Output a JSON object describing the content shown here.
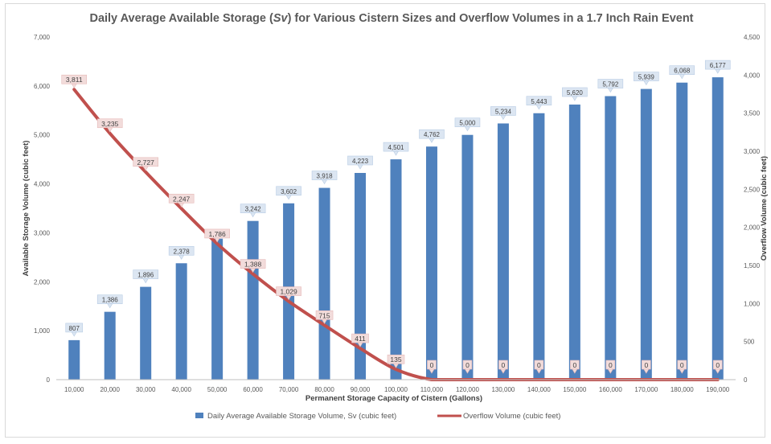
{
  "chart_data": {
    "type": "bar",
    "title_parts": [
      "Daily Average Available Storage (",
      "Sv",
      ") for Various Cistern Sizes and Overflow Volumes in a 1.7 Inch Rain Event"
    ],
    "xlabel": "Permanent Storage Capacity of Cistern (Gallons)",
    "ylabel": "Available Storage Volume (cubic feet)",
    "y2label": "Overflow Volume (cubic feet)",
    "categories": [
      "10,000",
      "20,000",
      "30,000",
      "40,000",
      "50,000",
      "60,000",
      "70,000",
      "80,000",
      "90,000",
      "100,000",
      "110,000",
      "120,000",
      "130,000",
      "140,000",
      "150,000",
      "160,000",
      "170,000",
      "180,000",
      "190,000"
    ],
    "ylim": [
      0,
      7000
    ],
    "y2lim": [
      0,
      4500
    ],
    "y_ticks": [
      "0",
      "1,000",
      "2,000",
      "3,000",
      "4,000",
      "5,000",
      "6,000",
      "7,000"
    ],
    "y2_ticks": [
      "0",
      "500",
      "1,000",
      "1,500",
      "2,000",
      "2,500",
      "3,000",
      "3,500",
      "4,000",
      "4,500"
    ],
    "grid": false,
    "legend_position": "bottom",
    "series": [
      {
        "name": "Daily Average Available Storage Volume, Sv (cubic feet)",
        "type": "bar",
        "axis": "left",
        "color": "#4f81bd",
        "values": [
          807,
          1386,
          1896,
          2378,
          2880,
          3242,
          3602,
          3918,
          4223,
          4501,
          4762,
          5000,
          5234,
          5443,
          5620,
          5792,
          5939,
          6068,
          6177
        ],
        "labels": [
          "807",
          "1,386",
          "1,896",
          "2,378",
          "",
          "3,242",
          "3,602",
          "3,918",
          "4,223",
          "4,501",
          "4,762",
          "5,000",
          "5,234",
          "5,443",
          "5,620",
          "5,792",
          "5,939",
          "6,068",
          "6,177"
        ]
      },
      {
        "name": "Overflow Volume (cubic feet)",
        "type": "line",
        "axis": "right",
        "color": "#c0504d",
        "values": [
          3811,
          3235,
          2727,
          2247,
          1786,
          1388,
          1029,
          715,
          411,
          135,
          0,
          0,
          0,
          0,
          0,
          0,
          0,
          0,
          0
        ],
        "labels": [
          "3,811",
          "3,235",
          "2,727",
          "2,247",
          "1,786",
          "1,388",
          "1,029",
          "715",
          "411",
          "135",
          "0",
          "0",
          "0",
          "0",
          "0",
          "0",
          "0",
          "0",
          "0"
        ]
      }
    ]
  }
}
